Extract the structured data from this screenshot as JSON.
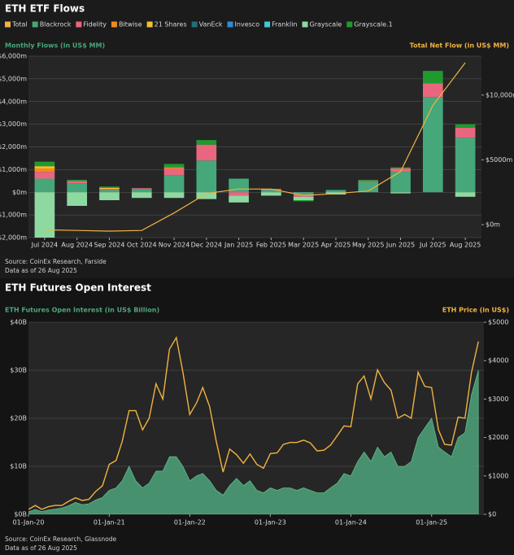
{
  "chart_data": [
    {
      "type": "bar",
      "stacked": true,
      "title": "ETH ETF Flows",
      "y_label": "Monthly Flows (in US$ MM)",
      "y2_label": "Total Net Flow (in US$ MM)",
      "source": "Source: CoinEx Research, Farside",
      "note": "Data as of 26 Aug 2025",
      "categories": [
        "Jul 2024",
        "Aug 2024",
        "Sep 2024",
        "Oct 2024",
        "Nov 2024",
        "Dec 2024",
        "Jan 2025",
        "Feb 2025",
        "Mar 2025",
        "Apr 2025",
        "May 2025",
        "Jun 2025",
        "Jul 2025",
        "Aug 2025"
      ],
      "series": [
        {
          "name": "Total",
          "color": "#f0b341",
          "type": "line",
          "axis": "y2",
          "values": [
            -400,
            -450,
            -500,
            -450,
            900,
            2400,
            2750,
            2750,
            2250,
            2400,
            2600,
            4100,
            9200,
            12500
          ]
        },
        {
          "name": "Blackrock",
          "color": "#46a77b",
          "values": [
            600,
            400,
            100,
            150,
            750,
            1400,
            600,
            100,
            -100,
            100,
            450,
            900,
            4200,
            2400
          ]
        },
        {
          "name": "Fidelity",
          "color": "#e8677e",
          "values": [
            300,
            100,
            50,
            30,
            300,
            700,
            -150,
            50,
            -100,
            0,
            50,
            150,
            600,
            450
          ]
        },
        {
          "name": "Bitwise",
          "color": "#f28c1e",
          "values": [
            150,
            0,
            0,
            0,
            50,
            0,
            0,
            0,
            0,
            0,
            0,
            0,
            0,
            0
          ]
        },
        {
          "name": "21 Shares",
          "color": "#f2c12e",
          "values": [
            100,
            0,
            50,
            0,
            0,
            0,
            0,
            0,
            0,
            0,
            0,
            0,
            0,
            0
          ]
        },
        {
          "name": "VanEck",
          "color": "#1f6f7a",
          "values": [
            0,
            0,
            0,
            0,
            0,
            0,
            0,
            0,
            0,
            0,
            0,
            0,
            0,
            0
          ]
        },
        {
          "name": "Invesco",
          "color": "#2b8fd6",
          "values": [
            0,
            0,
            0,
            0,
            0,
            0,
            0,
            0,
            0,
            0,
            0,
            0,
            0,
            0
          ]
        },
        {
          "name": "Franklin",
          "color": "#3fc9d8",
          "values": [
            0,
            0,
            0,
            0,
            0,
            0,
            0,
            0,
            0,
            0,
            0,
            0,
            0,
            0
          ]
        },
        {
          "name": "Grayscale",
          "color": "#8ed9a0",
          "values": [
            -2100,
            -600,
            -350,
            -250,
            -250,
            -300,
            -300,
            -150,
            -150,
            -100,
            0,
            -50,
            0,
            -200
          ]
        },
        {
          "name": "Grayscale.1",
          "color": "#1f9a2e",
          "values": [
            200,
            50,
            50,
            0,
            150,
            200,
            0,
            0,
            -50,
            0,
            50,
            50,
            550,
            150
          ]
        }
      ],
      "ylim": [
        -2000,
        6000
      ],
      "yticks": [
        {
          "value": -2000,
          "label": "-$2,000m"
        },
        {
          "value": -1000,
          "label": "-$1,000m"
        },
        {
          "value": 0,
          "label": "$0m"
        },
        {
          "value": 1000,
          "label": "$1,000m"
        },
        {
          "value": 2000,
          "label": "$2,000m"
        },
        {
          "value": 3000,
          "label": "$3,000m"
        },
        {
          "value": 4000,
          "label": "$4,000m"
        },
        {
          "value": 5000,
          "label": "$5,000m"
        },
        {
          "value": 6000,
          "label": "$6,000m"
        }
      ],
      "y2lim": [
        -1000,
        13000
      ],
      "y2ticks": [
        {
          "value": 0,
          "label": "$0m"
        },
        {
          "value": 5000,
          "label": "$5000m"
        },
        {
          "value": 10000,
          "label": "$10,000m"
        }
      ],
      "grid": true,
      "legend": "top"
    },
    {
      "type": "area",
      "title": "ETH Futures Open Interest",
      "y_label": "ETH Futures Open Interest (in US$ Billion)",
      "y2_label": "ETH Price (in US$)",
      "source": "Source: CoinEx Research, Glassnode",
      "note": "Data as of 26 Aug 2025",
      "x": [
        "2020-01-01",
        "2020-02-01",
        "2020-03-01",
        "2020-04-01",
        "2020-05-01",
        "2020-06-01",
        "2020-07-01",
        "2020-08-01",
        "2020-09-01",
        "2020-10-01",
        "2020-11-01",
        "2020-12-01",
        "2021-01-01",
        "2021-02-01",
        "2021-03-01",
        "2021-04-01",
        "2021-05-01",
        "2021-06-01",
        "2021-07-01",
        "2021-08-01",
        "2021-09-01",
        "2021-10-01",
        "2021-11-01",
        "2021-12-01",
        "2022-01-01",
        "2022-02-01",
        "2022-03-01",
        "2022-04-01",
        "2022-05-01",
        "2022-06-01",
        "2022-07-01",
        "2022-08-01",
        "2022-09-01",
        "2022-10-01",
        "2022-11-01",
        "2022-12-01",
        "2023-01-01",
        "2023-02-01",
        "2023-03-01",
        "2023-04-01",
        "2023-05-01",
        "2023-06-01",
        "2023-07-01",
        "2023-08-01",
        "2023-09-01",
        "2023-10-01",
        "2023-11-01",
        "2023-12-01",
        "2024-01-01",
        "2024-02-01",
        "2024-03-01",
        "2024-04-01",
        "2024-05-01",
        "2024-06-01",
        "2024-07-01",
        "2024-08-01",
        "2024-09-01",
        "2024-10-01",
        "2024-11-01",
        "2024-12-01",
        "2025-01-01",
        "2025-02-01",
        "2025-03-01",
        "2025-04-01",
        "2025-05-01",
        "2025-06-01",
        "2025-07-01",
        "2025-08-01"
      ],
      "series": [
        {
          "color": "#4fa57c",
          "type": "area",
          "values": [
            0.5,
            1,
            0.6,
            0.9,
            1.1,
            1.3,
            1.8,
            2.5,
            2,
            2.2,
            3,
            3.5,
            5,
            5.5,
            7,
            10,
            7,
            5.5,
            6.5,
            9,
            9,
            12,
            12,
            10,
            7,
            8,
            8.5,
            7,
            5,
            4,
            6,
            7.5,
            6,
            7,
            5,
            4.5,
            5.5,
            5,
            5.5,
            5.5,
            5,
            5.5,
            5,
            4.5,
            4.5,
            5.5,
            6.5,
            8.5,
            8,
            11,
            13,
            11,
            14,
            12,
            13,
            10,
            10,
            11,
            16,
            18,
            20,
            14,
            13,
            12,
            16,
            17,
            25,
            30
          ]
        },
        {
          "color": "#f0b341",
          "type": "line",
          "axis": "y2",
          "values": [
            130,
            230,
            130,
            200,
            230,
            230,
            340,
            430,
            360,
            390,
            600,
            740,
            1300,
            1400,
            1900,
            2700,
            2700,
            2200,
            2500,
            3400,
            3000,
            4300,
            4600,
            3700,
            2600,
            2900,
            3300,
            2800,
            1900,
            1100,
            1700,
            1550,
            1330,
            1570,
            1300,
            1200,
            1580,
            1600,
            1820,
            1870,
            1870,
            1930,
            1860,
            1650,
            1670,
            1800,
            2050,
            2300,
            2280,
            3400,
            3600,
            3000,
            3760,
            3430,
            3230,
            2500,
            2600,
            2500,
            3700,
            3330,
            3300,
            2200,
            1820,
            1800,
            2530,
            2500,
            3700,
            4500
          ]
        }
      ],
      "xlim": [
        "2020-01-01",
        "2025-08-26"
      ],
      "xticks": [
        {
          "value": "2020-01-01",
          "label": "01-Jan-20"
        },
        {
          "value": "2021-01-01",
          "label": "01-Jan-21"
        },
        {
          "value": "2022-01-01",
          "label": "01-Jan-22"
        },
        {
          "value": "2023-01-01",
          "label": "01-Jan-23"
        },
        {
          "value": "2024-01-01",
          "label": "01-Jan-24"
        },
        {
          "value": "2025-01-01",
          "label": "01-Jan-25"
        }
      ],
      "ylim": [
        0,
        40
      ],
      "yticks": [
        {
          "value": 0,
          "label": "$0B"
        },
        {
          "value": 10,
          "label": "$10B"
        },
        {
          "value": 20,
          "label": "$20B"
        },
        {
          "value": 30,
          "label": "$30B"
        },
        {
          "value": 40,
          "label": "$40B"
        }
      ],
      "y2lim": [
        0,
        5000
      ],
      "y2ticks": [
        {
          "value": 0,
          "label": "$0"
        },
        {
          "value": 1000,
          "label": "$1000"
        },
        {
          "value": 2000,
          "label": "$2000"
        },
        {
          "value": 3000,
          "label": "$3000"
        },
        {
          "value": 4000,
          "label": "$4000"
        },
        {
          "value": 5000,
          "label": "$5000"
        }
      ],
      "grid": true
    }
  ]
}
